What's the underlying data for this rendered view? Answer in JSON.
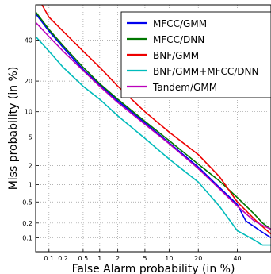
{
  "chart_data": {
    "type": "line",
    "title": "",
    "xlabel": "False Alarm probability (in %)",
    "ylabel": "Miss probability (in %)",
    "scale": "normal-deviate (DET)",
    "grid": true,
    "legend_position": "top-right",
    "xlim": [
      0.05,
      60
    ],
    "ylim": [
      0.05,
      60
    ],
    "xticks": [
      0.1,
      0.2,
      0.5,
      1,
      2,
      5,
      10,
      20,
      40
    ],
    "xtick_labels": [
      "0.1",
      "0.2",
      "0.5",
      "1",
      "2",
      "5",
      "10",
      "20",
      "40"
    ],
    "yticks": [
      0.1,
      0.2,
      0.5,
      1,
      2,
      5,
      10,
      20,
      40
    ],
    "ytick_labels": [
      "0.1",
      "0.2",
      "0.5",
      "1",
      "2",
      "5",
      "10",
      "20",
      "40"
    ],
    "series": [
      {
        "name": "MFCC/GMM",
        "color": "#0000ee",
        "points": [
          [
            0.05,
            55
          ],
          [
            0.1,
            45
          ],
          [
            0.2,
            36
          ],
          [
            0.5,
            25
          ],
          [
            1,
            18.5
          ],
          [
            2,
            13
          ],
          [
            5,
            7.5
          ],
          [
            10,
            4.2
          ],
          [
            20,
            1.9
          ],
          [
            30,
            0.9
          ],
          [
            40,
            0.45
          ],
          [
            45,
            0.22
          ],
          [
            50,
            0.17
          ],
          [
            55,
            0.13
          ],
          [
            60,
            0.1
          ]
        ]
      },
      {
        "name": "MFCC/DNN",
        "color": "#007700",
        "points": [
          [
            0.05,
            56
          ],
          [
            0.1,
            46
          ],
          [
            0.2,
            37
          ],
          [
            0.5,
            26
          ],
          [
            1,
            19
          ],
          [
            2,
            13.5
          ],
          [
            5,
            7.8
          ],
          [
            10,
            4.5
          ],
          [
            20,
            2.1
          ],
          [
            30,
            1.15
          ],
          [
            40,
            0.6
          ],
          [
            50,
            0.3
          ],
          [
            55,
            0.2
          ],
          [
            60,
            0.15
          ]
        ]
      },
      {
        "name": "BNF/GMM",
        "color": "#ee0000",
        "points": [
          [
            0.07,
            60
          ],
          [
            0.1,
            53
          ],
          [
            0.2,
            45
          ],
          [
            0.5,
            34
          ],
          [
            1,
            26
          ],
          [
            2,
            18
          ],
          [
            5,
            10
          ],
          [
            10,
            5.8
          ],
          [
            20,
            2.9
          ],
          [
            30,
            1.35
          ],
          [
            40,
            0.5
          ],
          [
            50,
            0.24
          ],
          [
            55,
            0.17
          ],
          [
            60,
            0.12
          ]
        ]
      },
      {
        "name": "BNF/GMM+MFCC/DNN",
        "color": "#00bbbb",
        "points": [
          [
            0.05,
            42
          ],
          [
            0.1,
            34
          ],
          [
            0.2,
            26
          ],
          [
            0.5,
            18
          ],
          [
            1,
            13.5
          ],
          [
            2,
            9
          ],
          [
            5,
            4.8
          ],
          [
            10,
            2.5
          ],
          [
            20,
            1.1
          ],
          [
            30,
            0.42
          ],
          [
            40,
            0.14
          ],
          [
            50,
            0.09
          ],
          [
            55,
            0.07
          ],
          [
            60,
            0.07
          ]
        ]
      },
      {
        "name": "Tandem/GMM",
        "color": "#bb00bb",
        "points": [
          [
            0.05,
            50
          ],
          [
            0.1,
            42
          ],
          [
            0.2,
            34
          ],
          [
            0.5,
            24.5
          ],
          [
            1,
            18
          ],
          [
            2,
            12.5
          ],
          [
            5,
            7.2
          ],
          [
            10,
            4.1
          ],
          [
            20,
            1.8
          ],
          [
            30,
            0.85
          ],
          [
            40,
            0.42
          ],
          [
            50,
            0.22
          ],
          [
            55,
            0.18
          ],
          [
            60,
            0.15
          ]
        ]
      }
    ]
  }
}
